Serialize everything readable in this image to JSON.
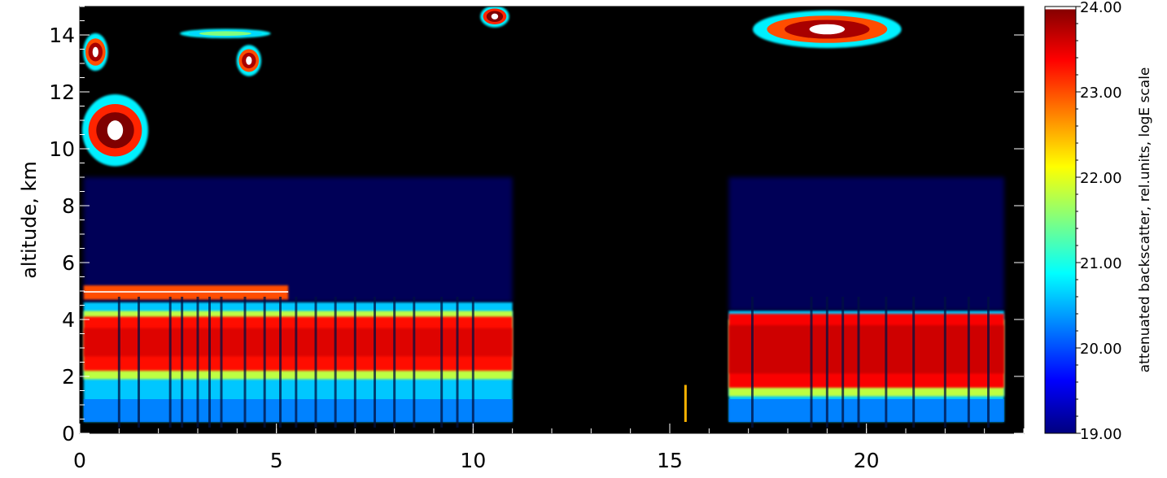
{
  "chart_data": {
    "type": "heatmap",
    "title": "",
    "xlabel": "",
    "ylabel": "altitude,  km",
    "xlim": [
      0,
      24
    ],
    "ylim": [
      0,
      15
    ],
    "x_ticks": [
      {
        "value": 0,
        "label": "0"
      },
      {
        "value": 5,
        "label": "5"
      },
      {
        "value": 10,
        "label": "10"
      },
      {
        "value": 15,
        "label": "15"
      },
      {
        "value": 20,
        "label": "20"
      }
    ],
    "y_ticks": [
      {
        "value": 0,
        "label": "0"
      },
      {
        "value": 2,
        "label": "2"
      },
      {
        "value": 4,
        "label": "4"
      },
      {
        "value": 6,
        "label": "6"
      },
      {
        "value": 8,
        "label": "8"
      },
      {
        "value": 10,
        "label": "10"
      },
      {
        "value": 12,
        "label": "12"
      },
      {
        "value": 14,
        "label": "14"
      }
    ],
    "colorbar": {
      "label": "attenuated backscatter,  rel.units,  logE scale",
      "range": [
        19.0,
        24.0
      ],
      "ticks": [
        {
          "value": 19,
          "label": "19.00"
        },
        {
          "value": 20,
          "label": "20.00"
        },
        {
          "value": 21,
          "label": "21.00"
        },
        {
          "value": 22,
          "label": "22.00"
        },
        {
          "value": 23,
          "label": "23.00"
        },
        {
          "value": 24,
          "label": "24.00"
        }
      ],
      "colormap": [
        "#00007f",
        "#0000ff",
        "#0080ff",
        "#00ffff",
        "#80ff80",
        "#ffff00",
        "#ff8000",
        "#ff0000",
        "#7f0000"
      ],
      "top_color": "#ffffff"
    },
    "background_color": "#000000",
    "grid": false,
    "features": [
      {
        "kind": "boundary_layer",
        "x_start": 0.1,
        "x_end": 11.0,
        "base": 0.4,
        "top": 4.6,
        "core_bottom": 2.2,
        "core_top": 4.1,
        "peak": 23.3
      },
      {
        "kind": "boundary_layer",
        "x_start": 16.5,
        "x_end": 23.5,
        "base": 0.4,
        "top": 4.3,
        "core_bottom": 1.6,
        "core_top": 4.2,
        "peak": 23.4
      },
      {
        "kind": "cloud",
        "x_start": 0.1,
        "x_end": 1.7,
        "base": 9.5,
        "top": 11.8,
        "peak": 24.0
      },
      {
        "kind": "cloud",
        "x_start": 0.1,
        "x_end": 0.7,
        "base": 12.8,
        "top": 14.0,
        "peak": 23.8
      },
      {
        "kind": "cloud",
        "x_start": 4.0,
        "x_end": 4.6,
        "base": 12.6,
        "top": 13.6,
        "peak": 23.8
      },
      {
        "kind": "cloud",
        "x_start": 2.6,
        "x_end": 4.8,
        "base": 13.9,
        "top": 14.2,
        "peak": 21.5
      },
      {
        "kind": "cloud",
        "x_start": 10.2,
        "x_end": 10.9,
        "base": 14.3,
        "top": 15.0,
        "peak": 24.0
      },
      {
        "kind": "cloud",
        "x_start": 17.2,
        "x_end": 20.8,
        "base": 13.6,
        "top": 14.8,
        "peak": 23.8
      },
      {
        "kind": "thin_layer",
        "x_start": 0.1,
        "x_end": 5.3,
        "base": 4.7,
        "top": 5.2,
        "peak": 23.0
      }
    ],
    "profile_gaps": [
      1.0,
      1.5,
      2.3,
      2.6,
      3.0,
      3.3,
      3.6,
      4.2,
      4.7,
      5.1,
      5.5,
      6.0,
      6.5,
      7.0,
      7.5,
      8.0,
      8.5,
      9.2,
      9.6,
      10.0,
      17.1,
      18.6,
      19.0,
      19.4,
      19.8,
      20.5,
      21.2,
      22.0,
      22.6,
      23.1
    ],
    "isolated_profile": {
      "x": 15.4,
      "base": 0.4,
      "top": 1.7
    }
  }
}
